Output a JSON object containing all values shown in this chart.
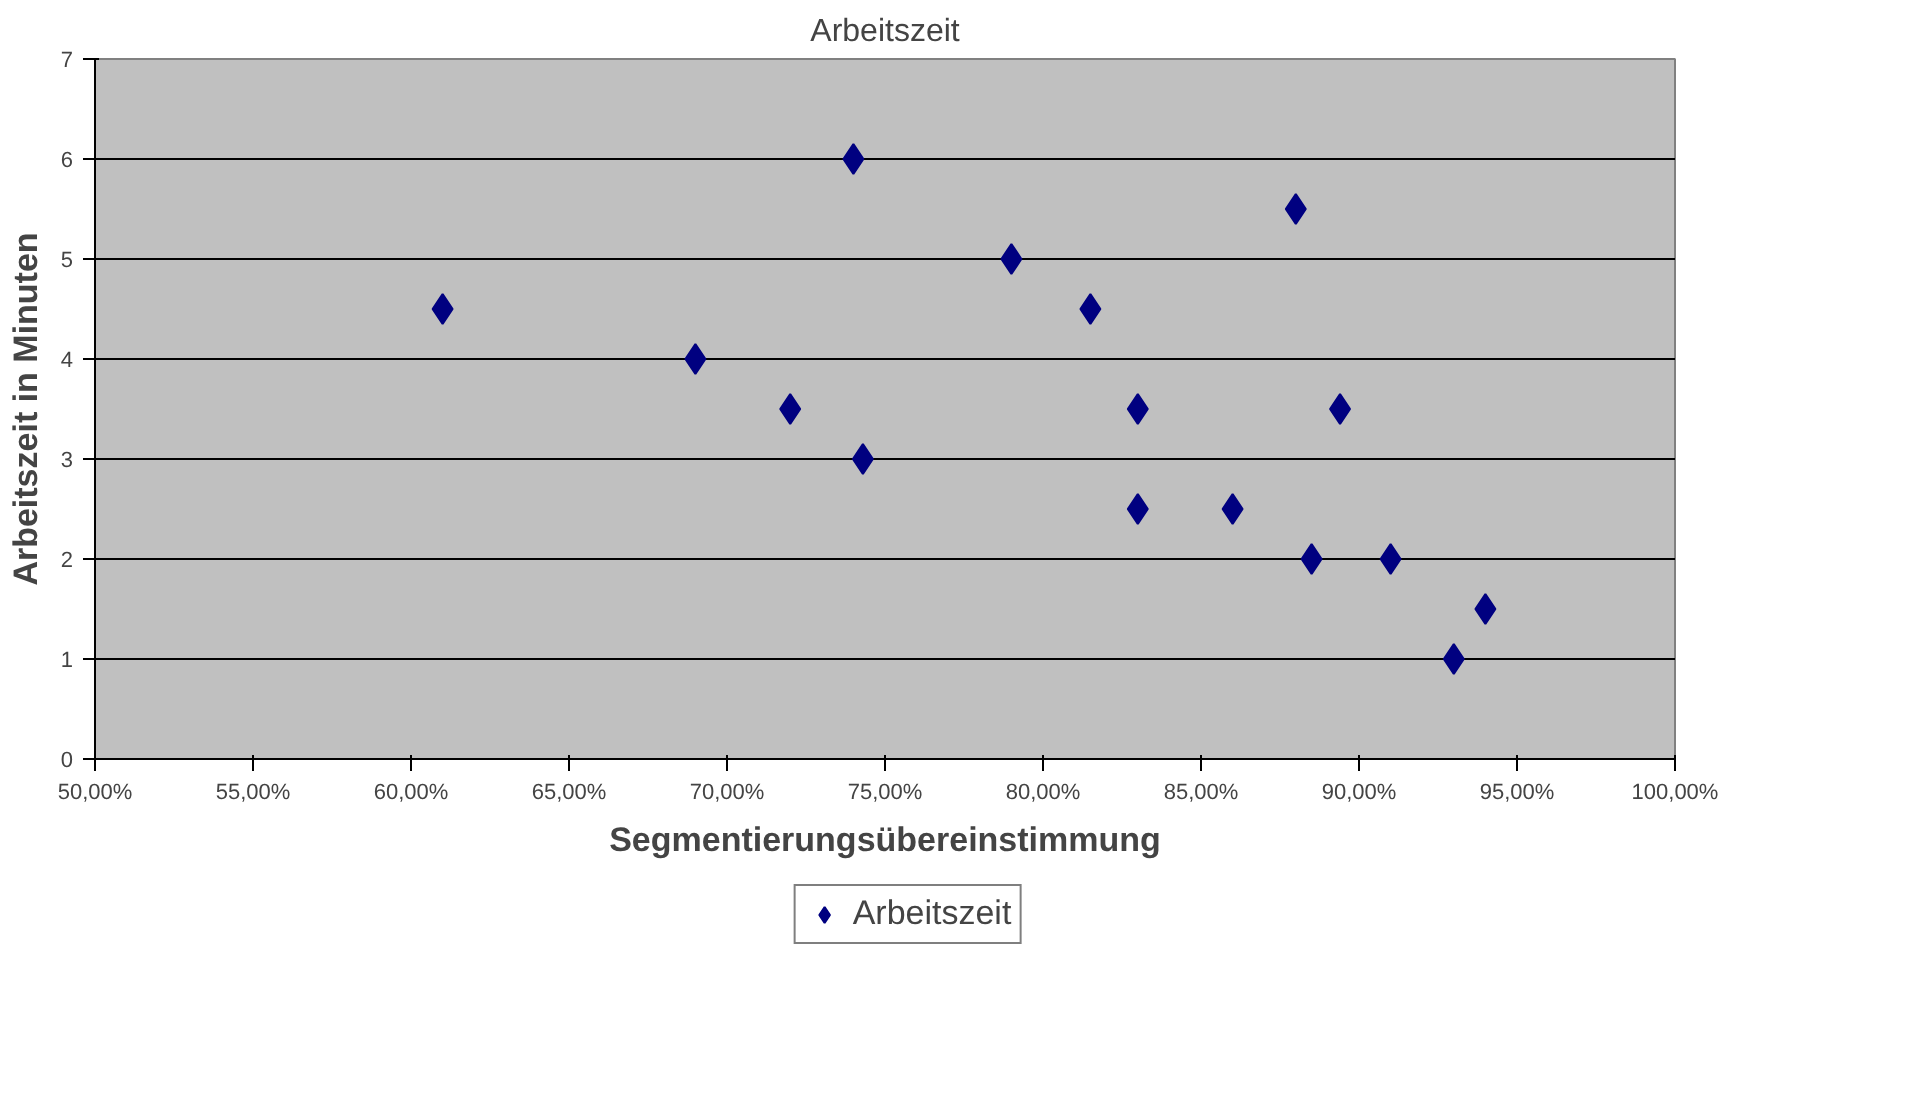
{
  "chart_data": {
    "type": "scatter",
    "title": "Arbeitszeit",
    "xlabel": "Segmentierungsübereinstimmung",
    "ylabel": "Arbeitszeit in Minuten",
    "x": [
      0.61,
      0.69,
      0.72,
      0.74,
      0.743,
      0.79,
      0.815,
      0.83,
      0.83,
      0.86,
      0.88,
      0.885,
      0.894,
      0.91,
      0.93,
      0.94
    ],
    "series": [
      {
        "name": "Arbeitszeit",
        "color": "#000080",
        "values": [
          4.5,
          4,
          3.5,
          6,
          3,
          5,
          4.5,
          3.5,
          2.5,
          2.5,
          5.5,
          2,
          3.5,
          2,
          1,
          1.5
        ]
      }
    ],
    "xlim": [
      0.5,
      1.0
    ],
    "xticks": [
      {
        "value": 0.5,
        "label": "50,00%"
      },
      {
        "value": 0.55,
        "label": "55,00%"
      },
      {
        "value": 0.6,
        "label": "60,00%"
      },
      {
        "value": 0.65,
        "label": "65,00%"
      },
      {
        "value": 0.7,
        "label": "70,00%"
      },
      {
        "value": 0.75,
        "label": "75,00%"
      },
      {
        "value": 0.8,
        "label": "80,00%"
      },
      {
        "value": 0.85,
        "label": "85,00%"
      },
      {
        "value": 0.9,
        "label": "90,00%"
      },
      {
        "value": 0.95,
        "label": "95,00%"
      },
      {
        "value": 1.0,
        "label": "100,00%"
      }
    ],
    "ylim": [
      0,
      7
    ],
    "yticks": [
      0,
      1,
      2,
      3,
      4,
      5,
      6,
      7
    ],
    "grid": "y",
    "legend": "bottom",
    "marker": "diamond"
  }
}
